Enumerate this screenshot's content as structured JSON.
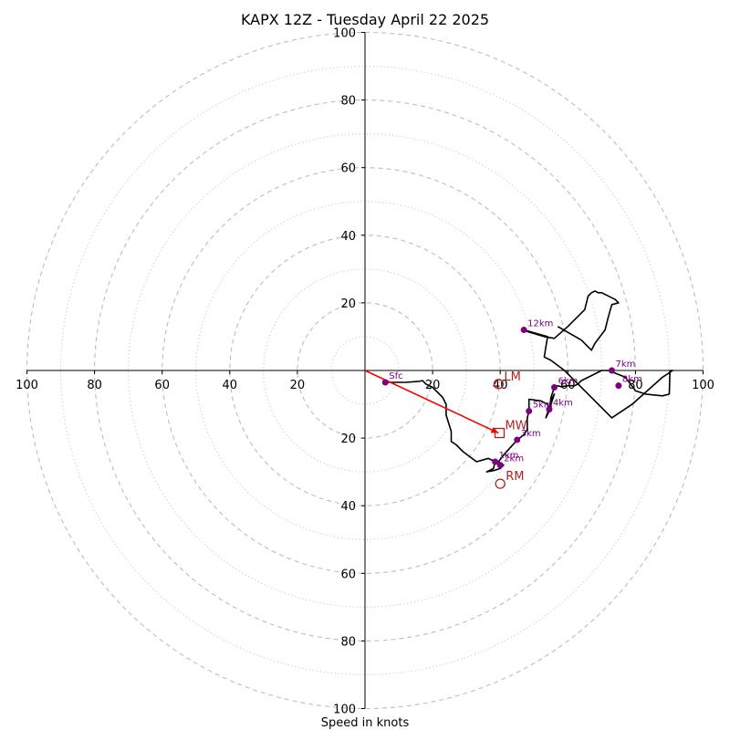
{
  "chart_data": {
    "type": "hodograph",
    "title": "KAPX 12Z - Tuesday April 22 2025",
    "xlabel": "Speed in knots",
    "units": "knots",
    "range": [
      -100,
      100
    ],
    "rings_major": [
      20,
      40,
      60,
      80,
      100
    ],
    "rings_minor": [
      10,
      30,
      50,
      70,
      90
    ],
    "x_tick_labels": [
      "100",
      "80",
      "60",
      "40",
      "20",
      "20",
      "40",
      "60",
      "80",
      "100"
    ],
    "x_tick_values": [
      -100,
      -80,
      -60,
      -40,
      -20,
      20,
      40,
      60,
      80,
      100
    ],
    "y_tick_labels": [
      "100",
      "80",
      "60",
      "40",
      "20",
      "20",
      "40",
      "60",
      "80",
      "100"
    ],
    "y_tick_values": [
      100,
      80,
      60,
      40,
      20,
      -20,
      -40,
      -60,
      -80,
      -100
    ],
    "grid": true,
    "colors": {
      "trace": "#000000",
      "levels": "#800080",
      "storm_motion": "#b22222",
      "shear_vector": "#ff0000",
      "ring": "#bdbdbd"
    },
    "hodograph_trace": [
      [
        6,
        -3.5
      ],
      [
        12,
        -3.5
      ],
      [
        16,
        -3.2
      ],
      [
        17,
        -3
      ],
      [
        18,
        -4
      ],
      [
        20,
        -5
      ],
      [
        23,
        -8
      ],
      [
        24,
        -10
      ],
      [
        24,
        -13.2
      ],
      [
        25.5,
        -18
      ],
      [
        25.5,
        -21
      ],
      [
        27,
        -22
      ],
      [
        29,
        -24
      ],
      [
        33,
        -27
      ],
      [
        36.5,
        -26
      ],
      [
        38.5,
        -27
      ],
      [
        38,
        -29
      ],
      [
        36,
        -30
      ],
      [
        38.5,
        -29.5
      ],
      [
        40,
        -29
      ],
      [
        41,
        -28
      ],
      [
        39.5,
        -27
      ],
      [
        41,
        -25
      ],
      [
        45,
        -20.6
      ],
      [
        47,
        -19
      ],
      [
        48,
        -17.5
      ],
      [
        48,
        -14
      ],
      [
        48.5,
        -12
      ],
      [
        48.5,
        -8.5
      ],
      [
        52,
        -9
      ],
      [
        54,
        -10
      ],
      [
        54.5,
        -12
      ],
      [
        53.5,
        -14
      ],
      [
        54.5,
        -11
      ],
      [
        55,
        -9
      ],
      [
        56,
        -7
      ],
      [
        55,
        -10
      ],
      [
        54.5,
        -12
      ],
      [
        55,
        -8
      ],
      [
        56,
        -5
      ],
      [
        57,
        -4.5
      ],
      [
        58,
        -4.8
      ],
      [
        60,
        -4.5
      ],
      [
        62,
        -4.5
      ],
      [
        63,
        -4
      ],
      [
        64,
        -3
      ],
      [
        67,
        -1.5
      ],
      [
        70,
        0
      ],
      [
        72,
        0
      ],
      [
        77,
        -2
      ],
      [
        80,
        -6
      ],
      [
        83,
        -7
      ],
      [
        88,
        -7.5
      ],
      [
        90,
        -7
      ],
      [
        90.2,
        0
      ],
      [
        91,
        0
      ],
      [
        88,
        -2
      ],
      [
        79,
        -10
      ],
      [
        73,
        -14
      ],
      [
        63,
        -4
      ],
      [
        59,
        0
      ],
      [
        55,
        3
      ],
      [
        53,
        4
      ],
      [
        54,
        10
      ],
      [
        47,
        12
      ],
      [
        48,
        11.5
      ],
      [
        53,
        10
      ],
      [
        56,
        9.5
      ],
      [
        60,
        13
      ],
      [
        65,
        18
      ],
      [
        66,
        22
      ],
      [
        67,
        23
      ],
      [
        68,
        23.5
      ],
      [
        69,
        23
      ],
      [
        70,
        23
      ],
      [
        74,
        21
      ],
      [
        75,
        20
      ],
      [
        73,
        19.5
      ],
      [
        72,
        16
      ],
      [
        71,
        12
      ],
      [
        68,
        8
      ],
      [
        67,
        6
      ],
      [
        64,
        9
      ],
      [
        57,
        13
      ]
    ],
    "levels": [
      {
        "label": "Sfc",
        "u": 6,
        "v": -3.5
      },
      {
        "label": "1km",
        "u": 38.5,
        "v": -27
      },
      {
        "label": "2km",
        "u": 40,
        "v": -28
      },
      {
        "label": "3km",
        "u": 45,
        "v": -20.5
      },
      {
        "label": "4km",
        "u": 54.5,
        "v": -11.5
      },
      {
        "label": "5km",
        "u": 48.5,
        "v": -12
      },
      {
        "label": "6km",
        "u": 56,
        "v": -5
      },
      {
        "label": "7km",
        "u": 73,
        "v": 0
      },
      {
        "label": "8km",
        "u": 75,
        "v": -4.5
      },
      {
        "label": "12km",
        "u": 47,
        "v": 12
      }
    ],
    "storm_motion": [
      {
        "label": "LM",
        "u": 39.5,
        "v": -4,
        "marker": "circle"
      },
      {
        "label": "MW",
        "u": 39.8,
        "v": -18.5,
        "marker": "square"
      },
      {
        "label": "RM",
        "u": 40,
        "v": -33.5,
        "marker": "circle"
      }
    ],
    "shear_vector": {
      "from": [
        0,
        0
      ],
      "to": [
        39.5,
        -18.5
      ]
    }
  }
}
